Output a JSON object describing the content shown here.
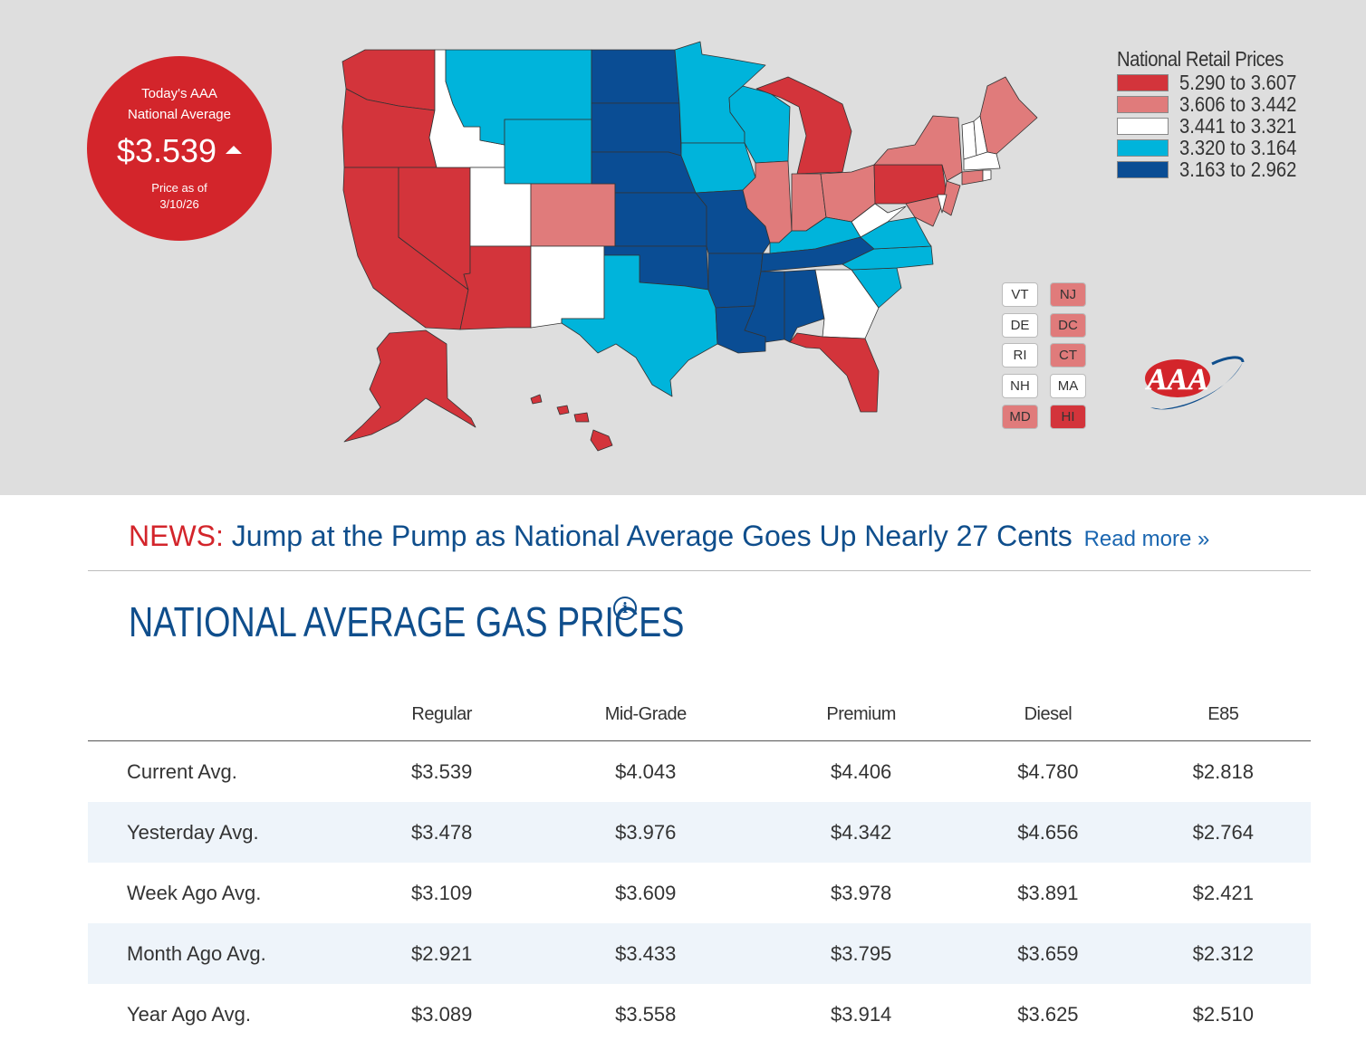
{
  "badge": {
    "line1": "Today's AAA",
    "line2": "National Average",
    "price": "$3.539",
    "trend": "up",
    "asof_label": "Price as of",
    "asof_date": "3/10/26"
  },
  "legend": {
    "title": "National Retail Prices",
    "items": [
      {
        "label": "5.290 to 3.607",
        "color": "#d3343b"
      },
      {
        "label": "3.606 to 3.442",
        "color": "#e07b7b"
      },
      {
        "label": "3.441 to 3.321",
        "color": "#ffffff"
      },
      {
        "label": "3.320 to 3.164",
        "color": "#00b4db"
      },
      {
        "label": "3.163 to 2.962",
        "color": "#0a4d94"
      }
    ]
  },
  "small_states": [
    {
      "code": "VT",
      "color": "#ffffff"
    },
    {
      "code": "NJ",
      "color": "#e07b7b"
    },
    {
      "code": "DE",
      "color": "#ffffff"
    },
    {
      "code": "DC",
      "color": "#e07b7b"
    },
    {
      "code": "RI",
      "color": "#ffffff"
    },
    {
      "code": "CT",
      "color": "#e07b7b"
    },
    {
      "code": "NH",
      "color": "#ffffff"
    },
    {
      "code": "MA",
      "color": "#ffffff"
    },
    {
      "code": "MD",
      "color": "#e07b7b"
    },
    {
      "code": "HI",
      "color": "#d3343b"
    }
  ],
  "news": {
    "prefix": "NEWS:",
    "headline": "Jump at the Pump as National Average Goes Up Nearly 27 Cents",
    "read_more": "Read more »"
  },
  "section_title": "NATIONAL AVERAGE GAS PRICES",
  "table": {
    "headers": [
      "Regular",
      "Mid-Grade",
      "Premium",
      "Diesel",
      "E85"
    ],
    "rows": [
      {
        "label": "Current Avg.",
        "values": [
          "$3.539",
          "$4.043",
          "$4.406",
          "$4.780",
          "$2.818"
        ]
      },
      {
        "label": "Yesterday Avg.",
        "values": [
          "$3.478",
          "$3.976",
          "$4.342",
          "$4.656",
          "$2.764"
        ]
      },
      {
        "label": "Week Ago Avg.",
        "values": [
          "$3.109",
          "$3.609",
          "$3.978",
          "$3.891",
          "$2.421"
        ]
      },
      {
        "label": "Month Ago Avg.",
        "values": [
          "$2.921",
          "$3.433",
          "$3.795",
          "$3.659",
          "$2.312"
        ]
      },
      {
        "label": "Year Ago Avg.",
        "values": [
          "$3.089",
          "$3.558",
          "$3.914",
          "$3.625",
          "$2.510"
        ]
      }
    ]
  },
  "colors": {
    "red": "#d3343b",
    "pink": "#e07b7b",
    "white": "#ffffff",
    "light_blue": "#00b4db",
    "dark_blue": "#0a4d94",
    "brand_red": "#d3252b",
    "brand_blue": "#0f4e8c"
  }
}
